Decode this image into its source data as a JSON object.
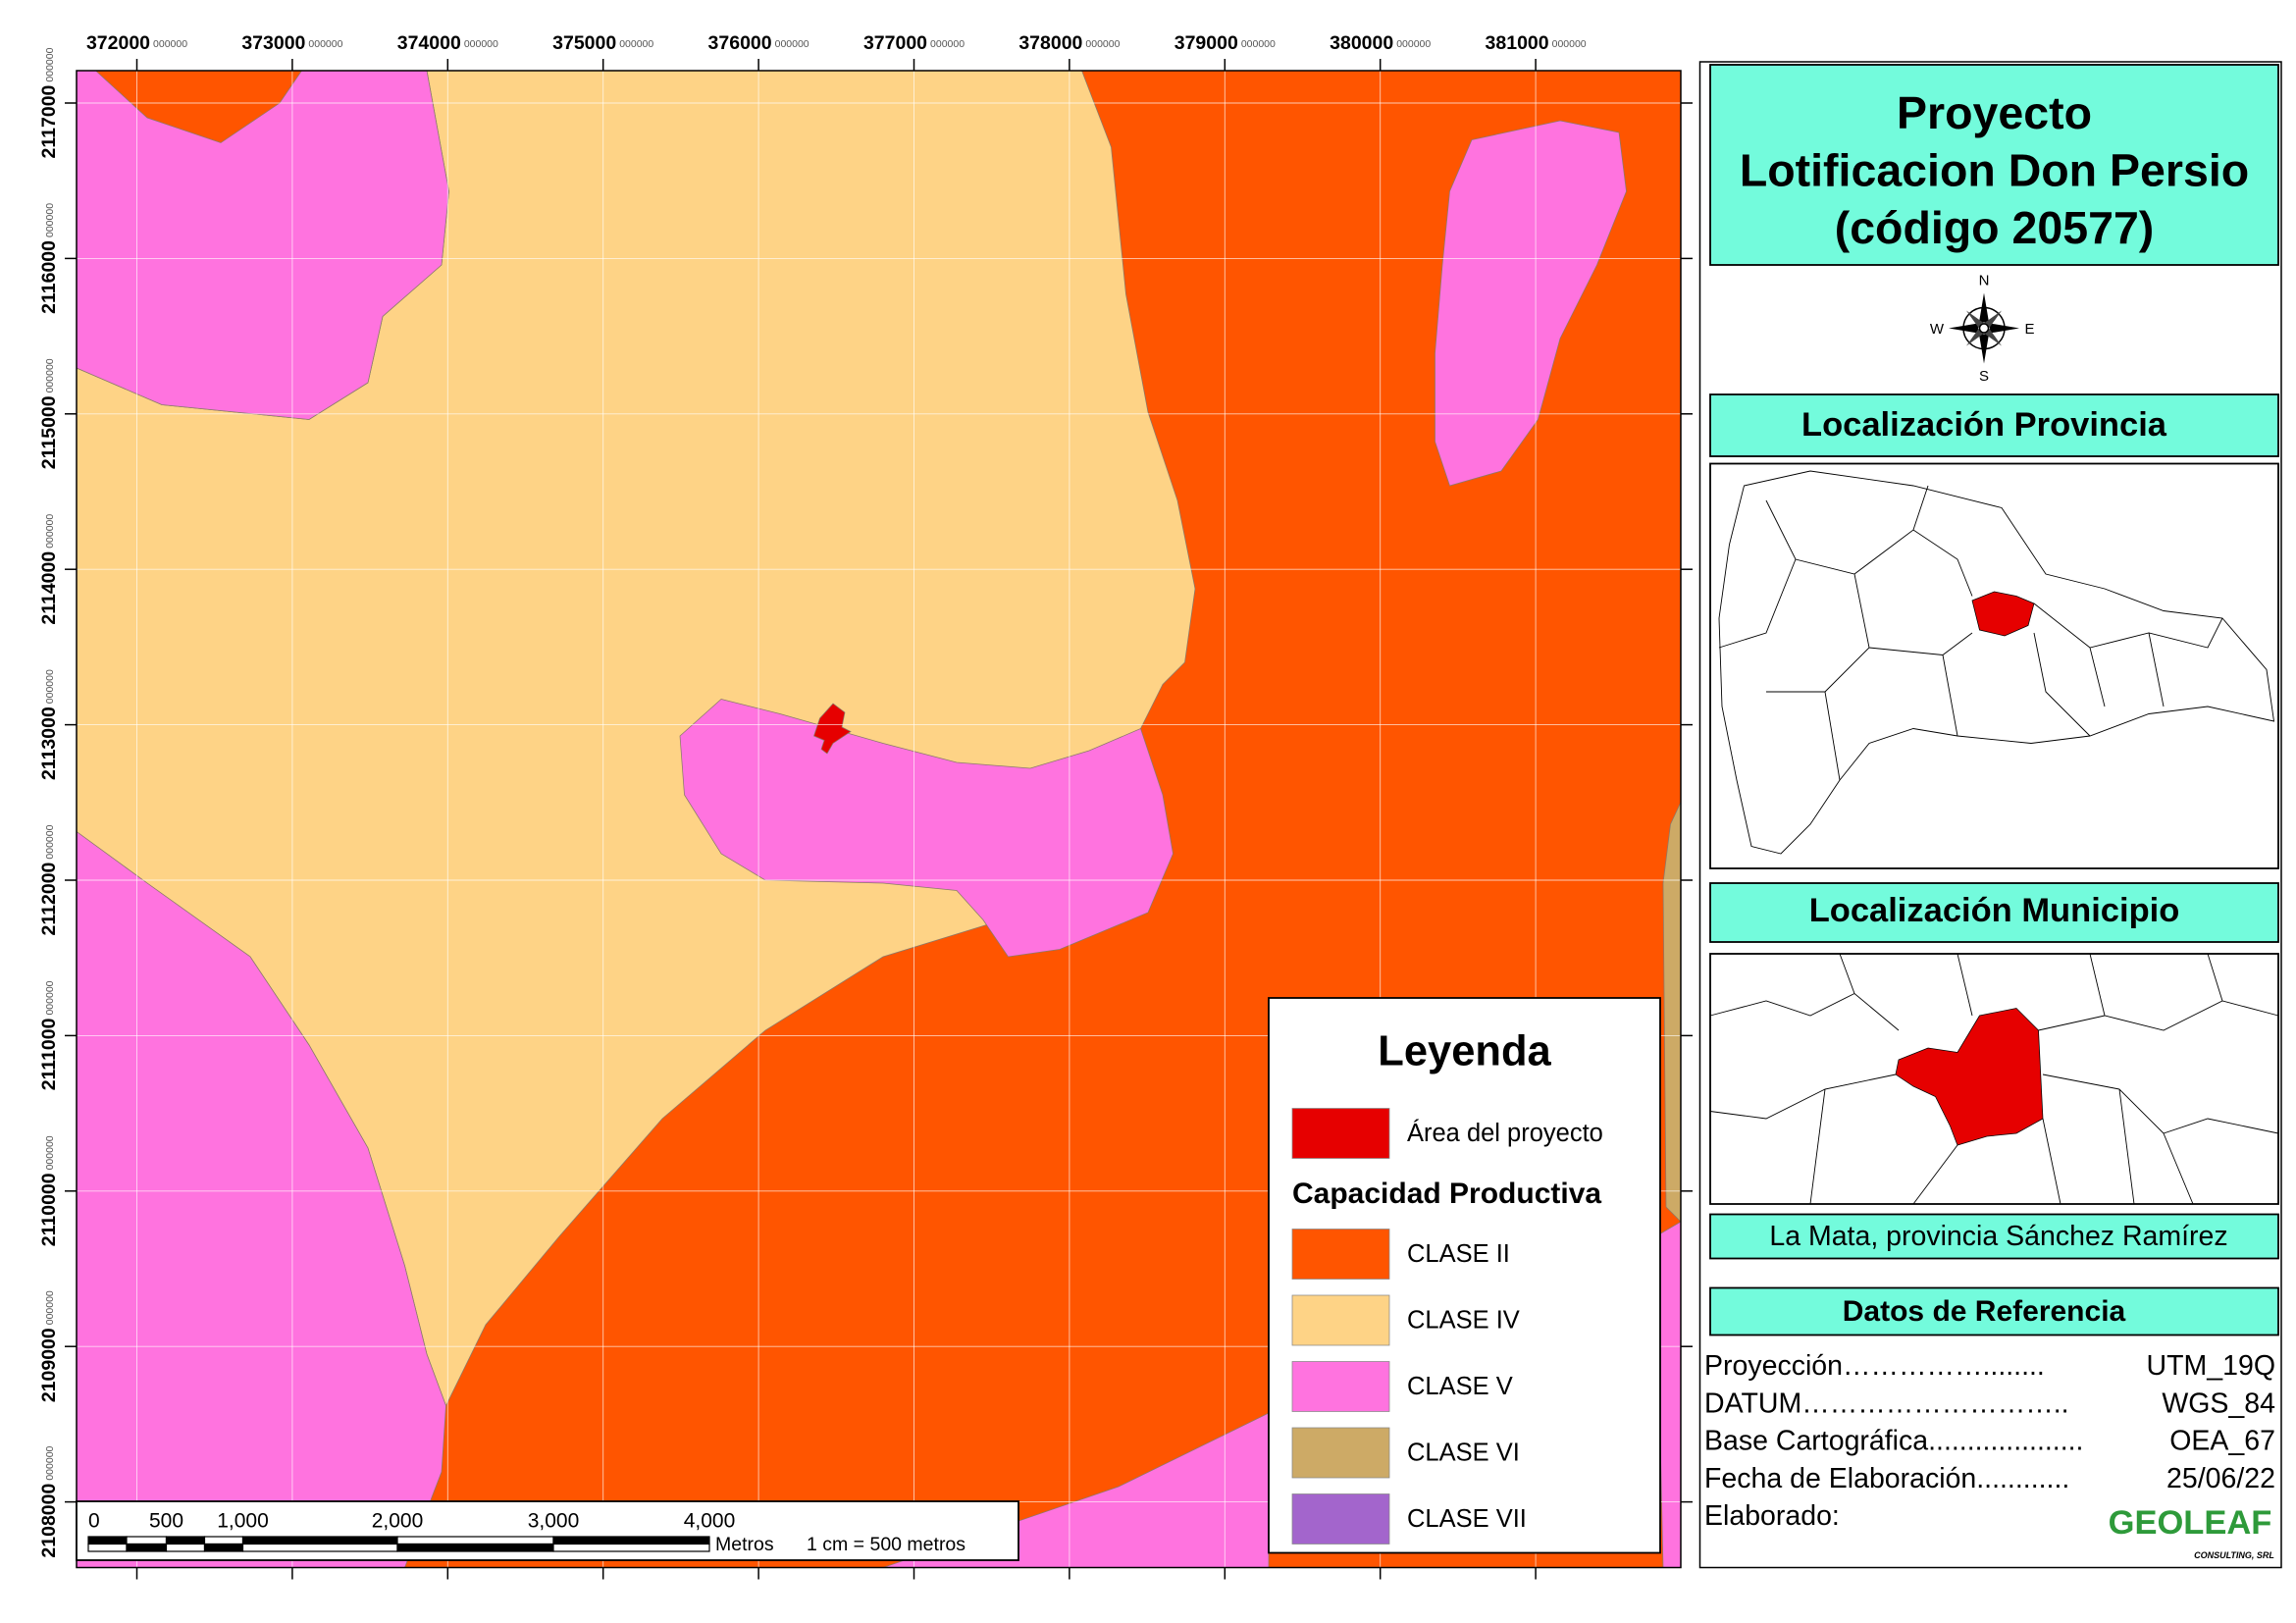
{
  "map": {
    "x_ticks": [
      {
        "label": "372000",
        "decimals": "000000"
      },
      {
        "label": "373000",
        "decimals": "000000"
      },
      {
        "label": "374000",
        "decimals": "000000"
      },
      {
        "label": "375000",
        "decimals": "000000"
      },
      {
        "label": "376000",
        "decimals": "000000"
      },
      {
        "label": "377000",
        "decimals": "000000"
      },
      {
        "label": "378000",
        "decimals": "000000"
      },
      {
        "label": "379000",
        "decimals": "000000"
      },
      {
        "label": "380000",
        "decimals": "000000"
      },
      {
        "label": "381000",
        "decimals": "000000"
      }
    ],
    "y_ticks": [
      {
        "label": "2117000",
        "decimals": "000000"
      },
      {
        "label": "2116000",
        "decimals": "000000"
      },
      {
        "label": "2115000",
        "decimals": "000000"
      },
      {
        "label": "2114000",
        "decimals": "000000"
      },
      {
        "label": "2113000",
        "decimals": "000000"
      },
      {
        "label": "2112000",
        "decimals": "000000"
      },
      {
        "label": "2111000",
        "decimals": "000000"
      },
      {
        "label": "2110000",
        "decimals": "000000"
      },
      {
        "label": "2109000",
        "decimals": "000000"
      },
      {
        "label": "2108000",
        "decimals": "000000"
      }
    ]
  },
  "legend": {
    "title": "Leyenda",
    "project": {
      "label": "Área del proyecto",
      "color": "#e60000"
    },
    "group_title": "Capacidad Productiva",
    "classes": [
      {
        "label": "CLASE II",
        "color": "#ff5500"
      },
      {
        "label": "CLASE IV",
        "color": "#fed386"
      },
      {
        "label": "CLASE V",
        "color": "#ff73df"
      },
      {
        "label": "CLASE VI",
        "color": "#cdaa66"
      },
      {
        "label": "CLASE VII",
        "color": "#a365cc"
      }
    ]
  },
  "scale_bar": {
    "labels": [
      "0",
      "500",
      "1,000",
      "2,000",
      "3,000",
      "4,000"
    ],
    "unit": "Metros",
    "ratio": "1 cm = 500 metros"
  },
  "panel": {
    "title_lines": [
      "Proyecto",
      "Lotificacion Don Persio",
      "(código 20577)"
    ],
    "compass": {
      "n": "N",
      "s": "S",
      "w": "W",
      "e": "E"
    },
    "province_header": "Localización Provincia",
    "municipio_header": "Localización Municipio",
    "municipio_name": "La Mata, provincia Sánchez Ramírez",
    "reference_header": "Datos de Referencia",
    "reference_rows": [
      {
        "label": "Proyección……………........",
        "value": "UTM_19Q"
      },
      {
        "label": "DATUM………………………..",
        "value": "WGS_84"
      },
      {
        "label": "Base Cartográfica....................",
        "value": "OEA_67"
      },
      {
        "label": "Fecha de Elaboración............",
        "value": "25/06/22"
      },
      {
        "label": "Elaborado:",
        "value": ""
      }
    ],
    "logo": {
      "name": "GEOLEAF",
      "subtitle": "CONSULTING, SRL"
    }
  }
}
